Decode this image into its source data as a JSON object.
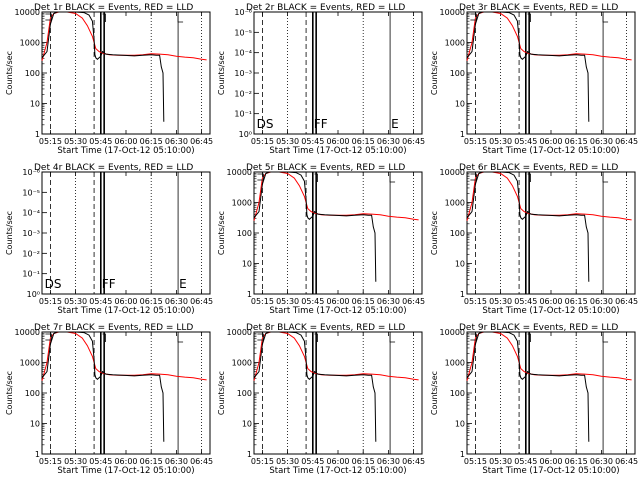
{
  "chart_data": [
    {
      "type": "line",
      "title": "Det 1r BLACK = Events, RED = LLD",
      "ylabel": "Counts/sec",
      "xlabel": "Start Time (17-Oct-12 05:10:00)",
      "x_ticks": [
        "05:15",
        "05:30",
        "05:45",
        "06:00",
        "06:15",
        "06:30",
        "06:45"
      ],
      "yscale": "log",
      "ylim": [
        1,
        10000
      ],
      "y_ticks": [
        "1",
        "10",
        "100",
        "1000",
        "10000"
      ],
      "markers": [],
      "has_data": true,
      "series": [
        {
          "name": "Events",
          "color": "#000000"
        },
        {
          "name": "LLD",
          "color": "#ff0000"
        }
      ]
    },
    {
      "type": "line",
      "title": "Det 2r BLACK = Events, RED = LLD",
      "ylabel": "Counts/sec",
      "xlabel": "Start Time (17-Oct-12 05:10:00)",
      "x_ticks": [
        "05:15",
        "05:30",
        "05:45",
        "06:00",
        "06:15",
        "06:30",
        "06:45"
      ],
      "yscale": "log",
      "ylim": [
        1e-06,
        1
      ],
      "y_ticks": [
        "10⁰",
        "10⁻¹",
        "10⁻²",
        "10⁻³",
        "10⁻⁴",
        "10⁻⁵",
        "10⁻⁶"
      ],
      "markers": [
        "DS",
        "FF",
        "E"
      ],
      "has_data": false,
      "series": [
        {
          "name": "Events",
          "color": "#000000"
        },
        {
          "name": "LLD",
          "color": "#ff0000"
        }
      ]
    },
    {
      "type": "line",
      "title": "Det 3r BLACK = Events, RED = LLD",
      "ylabel": "Counts/sec",
      "xlabel": "Start Time (17-Oct-12 05:10:00)",
      "x_ticks": [
        "05:15",
        "05:30",
        "05:45",
        "06:00",
        "06:15",
        "06:30",
        "06:45"
      ],
      "yscale": "log",
      "ylim": [
        1,
        10000
      ],
      "y_ticks": [
        "1",
        "10",
        "100",
        "1000",
        "10000"
      ],
      "markers": [],
      "has_data": true,
      "series": [
        {
          "name": "Events",
          "color": "#000000"
        },
        {
          "name": "LLD",
          "color": "#ff0000"
        }
      ]
    },
    {
      "type": "line",
      "title": "Det 4r BLACK = Events, RED = LLD",
      "ylabel": "Counts/sec",
      "xlabel": "Start Time (17-Oct-12 05:10:00)",
      "x_ticks": [
        "05:15",
        "05:30",
        "05:45",
        "06:00",
        "06:15",
        "06:30",
        "06:45"
      ],
      "yscale": "log",
      "ylim": [
        1e-06,
        1
      ],
      "y_ticks": [
        "10⁰",
        "10⁻¹",
        "10⁻²",
        "10⁻³",
        "10⁻⁴",
        "10⁻⁵",
        "10⁻⁶"
      ],
      "markers": [
        "DS",
        "FF",
        "E"
      ],
      "has_data": false,
      "series": [
        {
          "name": "Events",
          "color": "#000000"
        },
        {
          "name": "LLD",
          "color": "#ff0000"
        }
      ]
    },
    {
      "type": "line",
      "title": "Det 5r BLACK = Events, RED = LLD",
      "ylabel": "Counts/sec",
      "xlabel": "Start Time (17-Oct-12 05:10:00)",
      "x_ticks": [
        "05:15",
        "05:30",
        "05:45",
        "06:00",
        "06:15",
        "06:30",
        "06:45"
      ],
      "yscale": "log",
      "ylim": [
        1,
        10000
      ],
      "y_ticks": [
        "1",
        "10",
        "100",
        "1000",
        "10000"
      ],
      "markers": [],
      "has_data": true,
      "series": [
        {
          "name": "Events",
          "color": "#000000"
        },
        {
          "name": "LLD",
          "color": "#ff0000"
        }
      ]
    },
    {
      "type": "line",
      "title": "Det 6r BLACK = Events, RED = LLD",
      "ylabel": "Counts/sec",
      "xlabel": "Start Time (17-Oct-12 05:10:00)",
      "x_ticks": [
        "05:15",
        "05:30",
        "05:45",
        "06:00",
        "06:15",
        "06:30",
        "06:45"
      ],
      "yscale": "log",
      "ylim": [
        1,
        10000
      ],
      "y_ticks": [
        "1",
        "10",
        "100",
        "1000",
        "10000"
      ],
      "markers": [],
      "has_data": true,
      "series": [
        {
          "name": "Events",
          "color": "#000000"
        },
        {
          "name": "LLD",
          "color": "#ff0000"
        }
      ]
    },
    {
      "type": "line",
      "title": "Det 7r BLACK = Events, RED = LLD",
      "ylabel": "Counts/sec",
      "xlabel": "Start Time (17-Oct-12 05:10:00)",
      "x_ticks": [
        "05:15",
        "05:30",
        "05:45",
        "06:00",
        "06:15",
        "06:30",
        "06:45"
      ],
      "yscale": "log",
      "ylim": [
        1,
        10000
      ],
      "y_ticks": [
        "1",
        "10",
        "100",
        "1000",
        "10000"
      ],
      "markers": [],
      "has_data": true,
      "series": [
        {
          "name": "Events",
          "color": "#000000"
        },
        {
          "name": "LLD",
          "color": "#ff0000"
        }
      ]
    },
    {
      "type": "line",
      "title": "Det 8r BLACK = Events, RED = LLD",
      "ylabel": "Counts/sec",
      "xlabel": "Start Time (17-Oct-12 05:10:00)",
      "x_ticks": [
        "05:15",
        "05:30",
        "05:45",
        "06:00",
        "06:15",
        "06:30",
        "06:45"
      ],
      "yscale": "log",
      "ylim": [
        1,
        10000
      ],
      "y_ticks": [
        "1",
        "10",
        "100",
        "1000",
        "10000"
      ],
      "markers": [],
      "has_data": true,
      "series": [
        {
          "name": "Events",
          "color": "#000000"
        },
        {
          "name": "LLD",
          "color": "#ff0000"
        }
      ]
    },
    {
      "type": "line",
      "title": "Det 9r BLACK = Events, RED = LLD",
      "ylabel": "Counts/sec",
      "xlabel": "Start Time (17-Oct-12 05:10:00)",
      "x_ticks": [
        "05:15",
        "05:30",
        "05:45",
        "06:00",
        "06:15",
        "06:30",
        "06:45"
      ],
      "yscale": "log",
      "ylim": [
        1,
        10000
      ],
      "y_ticks": [
        "1",
        "10",
        "100",
        "1000",
        "10000"
      ],
      "markers": [],
      "has_data": true,
      "series": [
        {
          "name": "Events",
          "color": "#000000"
        },
        {
          "name": "LLD",
          "color": "#ff0000"
        }
      ]
    }
  ]
}
